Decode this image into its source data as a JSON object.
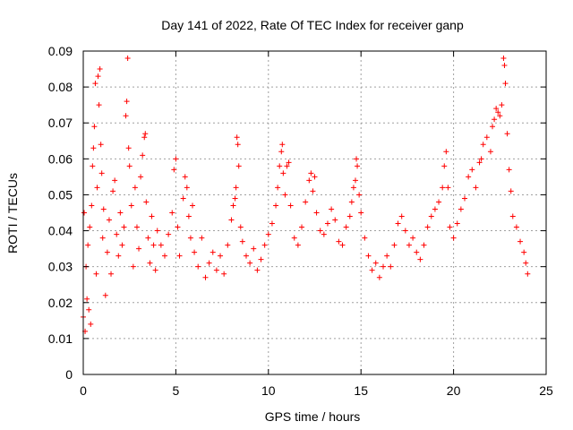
{
  "chart_data": {
    "type": "scatter",
    "title": "Day 141 of 2022, Rate Of TEC Index for receiver ganp",
    "xlabel": "GPS time / hours",
    "ylabel": "ROTI / TECUs",
    "xlim": [
      0,
      25
    ],
    "ylim": [
      0,
      0.09
    ],
    "xticks": [
      0,
      5,
      10,
      15,
      20,
      25
    ],
    "xtick_labels": [
      "0",
      "5",
      "10",
      "15",
      "20",
      "25"
    ],
    "yticks": [
      0,
      0.01,
      0.02,
      0.03,
      0.04,
      0.05,
      0.06,
      0.07,
      0.08,
      0.09
    ],
    "ytick_labels": [
      "0",
      "0.01",
      "0.02",
      "0.03",
      "0.04",
      "0.05",
      "0.06",
      "0.07",
      "0.08",
      "0.09"
    ],
    "grid": true,
    "marker": "+",
    "color": "#ff0000",
    "series": [
      {
        "points": [
          [
            0.0,
            0.016
          ],
          [
            0.05,
            0.045
          ],
          [
            0.1,
            0.012
          ],
          [
            0.15,
            0.03
          ],
          [
            0.2,
            0.021
          ],
          [
            0.25,
            0.036
          ],
          [
            0.3,
            0.018
          ],
          [
            0.35,
            0.041
          ],
          [
            0.4,
            0.014
          ],
          [
            0.45,
            0.047
          ],
          [
            0.5,
            0.058
          ],
          [
            0.55,
            0.063
          ],
          [
            0.6,
            0.069
          ],
          [
            0.65,
            0.081
          ],
          [
            0.7,
            0.028
          ],
          [
            0.75,
            0.052
          ],
          [
            0.8,
            0.083
          ],
          [
            0.85,
            0.075
          ],
          [
            0.9,
            0.085
          ],
          [
            0.95,
            0.064
          ],
          [
            1.0,
            0.056
          ],
          [
            1.05,
            0.038
          ],
          [
            1.1,
            0.046
          ],
          [
            1.2,
            0.022
          ],
          [
            1.3,
            0.034
          ],
          [
            1.4,
            0.043
          ],
          [
            1.5,
            0.028
          ],
          [
            1.6,
            0.051
          ],
          [
            1.7,
            0.054
          ],
          [
            1.8,
            0.039
          ],
          [
            1.9,
            0.033
          ],
          [
            2.0,
            0.045
          ],
          [
            2.1,
            0.036
          ],
          [
            2.2,
            0.041
          ],
          [
            2.3,
            0.072
          ],
          [
            2.35,
            0.076
          ],
          [
            2.4,
            0.088
          ],
          [
            2.45,
            0.063
          ],
          [
            2.5,
            0.058
          ],
          [
            2.6,
            0.047
          ],
          [
            2.7,
            0.03
          ],
          [
            2.8,
            0.052
          ],
          [
            2.9,
            0.041
          ],
          [
            3.0,
            0.035
          ],
          [
            3.1,
            0.055
          ],
          [
            3.2,
            0.061
          ],
          [
            3.3,
            0.066
          ],
          [
            3.35,
            0.067
          ],
          [
            3.4,
            0.048
          ],
          [
            3.5,
            0.038
          ],
          [
            3.6,
            0.031
          ],
          [
            3.7,
            0.044
          ],
          [
            3.8,
            0.036
          ],
          [
            3.9,
            0.029
          ],
          [
            4.0,
            0.04
          ],
          [
            4.2,
            0.036
          ],
          [
            4.4,
            0.033
          ],
          [
            4.6,
            0.039
          ],
          [
            4.8,
            0.045
          ],
          [
            4.9,
            0.057
          ],
          [
            5.0,
            0.06
          ],
          [
            5.1,
            0.041
          ],
          [
            5.2,
            0.033
          ],
          [
            5.4,
            0.049
          ],
          [
            5.5,
            0.055
          ],
          [
            5.6,
            0.052
          ],
          [
            5.7,
            0.044
          ],
          [
            5.8,
            0.038
          ],
          [
            5.9,
            0.047
          ],
          [
            6.0,
            0.034
          ],
          [
            6.2,
            0.03
          ],
          [
            6.4,
            0.038
          ],
          [
            6.6,
            0.027
          ],
          [
            6.8,
            0.031
          ],
          [
            7.0,
            0.034
          ],
          [
            7.2,
            0.029
          ],
          [
            7.4,
            0.033
          ],
          [
            7.6,
            0.028
          ],
          [
            7.8,
            0.036
          ],
          [
            8.0,
            0.043
          ],
          [
            8.1,
            0.047
          ],
          [
            8.2,
            0.049
          ],
          [
            8.25,
            0.052
          ],
          [
            8.3,
            0.066
          ],
          [
            8.35,
            0.064
          ],
          [
            8.4,
            0.058
          ],
          [
            8.5,
            0.041
          ],
          [
            8.6,
            0.037
          ],
          [
            8.8,
            0.033
          ],
          [
            9.0,
            0.031
          ],
          [
            9.2,
            0.035
          ],
          [
            9.4,
            0.029
          ],
          [
            9.6,
            0.032
          ],
          [
            9.8,
            0.036
          ],
          [
            10.0,
            0.039
          ],
          [
            10.2,
            0.042
          ],
          [
            10.4,
            0.047
          ],
          [
            10.5,
            0.052
          ],
          [
            10.6,
            0.058
          ],
          [
            10.7,
            0.062
          ],
          [
            10.75,
            0.064
          ],
          [
            10.8,
            0.056
          ],
          [
            10.9,
            0.05
          ],
          [
            11.0,
            0.058
          ],
          [
            11.1,
            0.059
          ],
          [
            11.2,
            0.047
          ],
          [
            11.4,
            0.038
          ],
          [
            11.6,
            0.036
          ],
          [
            11.8,
            0.041
          ],
          [
            12.0,
            0.048
          ],
          [
            12.2,
            0.054
          ],
          [
            12.3,
            0.056
          ],
          [
            12.4,
            0.051
          ],
          [
            12.5,
            0.055
          ],
          [
            12.6,
            0.045
          ],
          [
            12.8,
            0.04
          ],
          [
            13.0,
            0.039
          ],
          [
            13.2,
            0.042
          ],
          [
            13.4,
            0.046
          ],
          [
            13.6,
            0.043
          ],
          [
            13.8,
            0.037
          ],
          [
            14.0,
            0.036
          ],
          [
            14.2,
            0.041
          ],
          [
            14.4,
            0.044
          ],
          [
            14.5,
            0.048
          ],
          [
            14.6,
            0.052
          ],
          [
            14.7,
            0.054
          ],
          [
            14.75,
            0.06
          ],
          [
            14.8,
            0.058
          ],
          [
            14.9,
            0.05
          ],
          [
            15.0,
            0.045
          ],
          [
            15.2,
            0.038
          ],
          [
            15.4,
            0.033
          ],
          [
            15.6,
            0.029
          ],
          [
            15.8,
            0.031
          ],
          [
            16.0,
            0.027
          ],
          [
            16.2,
            0.03
          ],
          [
            16.4,
            0.033
          ],
          [
            16.6,
            0.03
          ],
          [
            16.8,
            0.036
          ],
          [
            17.0,
            0.042
          ],
          [
            17.2,
            0.044
          ],
          [
            17.4,
            0.04
          ],
          [
            17.6,
            0.036
          ],
          [
            17.8,
            0.038
          ],
          [
            18.0,
            0.034
          ],
          [
            18.2,
            0.032
          ],
          [
            18.4,
            0.036
          ],
          [
            18.6,
            0.041
          ],
          [
            18.8,
            0.044
          ],
          [
            19.0,
            0.046
          ],
          [
            19.2,
            0.048
          ],
          [
            19.4,
            0.052
          ],
          [
            19.5,
            0.058
          ],
          [
            19.6,
            0.062
          ],
          [
            19.7,
            0.052
          ],
          [
            19.8,
            0.041
          ],
          [
            20.0,
            0.038
          ],
          [
            20.2,
            0.042
          ],
          [
            20.4,
            0.046
          ],
          [
            20.6,
            0.049
          ],
          [
            20.8,
            0.055
          ],
          [
            21.0,
            0.057
          ],
          [
            21.2,
            0.052
          ],
          [
            21.4,
            0.059
          ],
          [
            21.5,
            0.06
          ],
          [
            21.6,
            0.064
          ],
          [
            21.8,
            0.066
          ],
          [
            22.0,
            0.062
          ],
          [
            22.1,
            0.069
          ],
          [
            22.2,
            0.071
          ],
          [
            22.3,
            0.074
          ],
          [
            22.4,
            0.073
          ],
          [
            22.5,
            0.072
          ],
          [
            22.6,
            0.075
          ],
          [
            22.7,
            0.088
          ],
          [
            22.75,
            0.086
          ],
          [
            22.8,
            0.081
          ],
          [
            22.9,
            0.067
          ],
          [
            23.0,
            0.057
          ],
          [
            23.1,
            0.051
          ],
          [
            23.2,
            0.044
          ],
          [
            23.4,
            0.041
          ],
          [
            23.6,
            0.037
          ],
          [
            23.8,
            0.034
          ],
          [
            23.9,
            0.031
          ],
          [
            24.0,
            0.028
          ]
        ]
      }
    ]
  }
}
